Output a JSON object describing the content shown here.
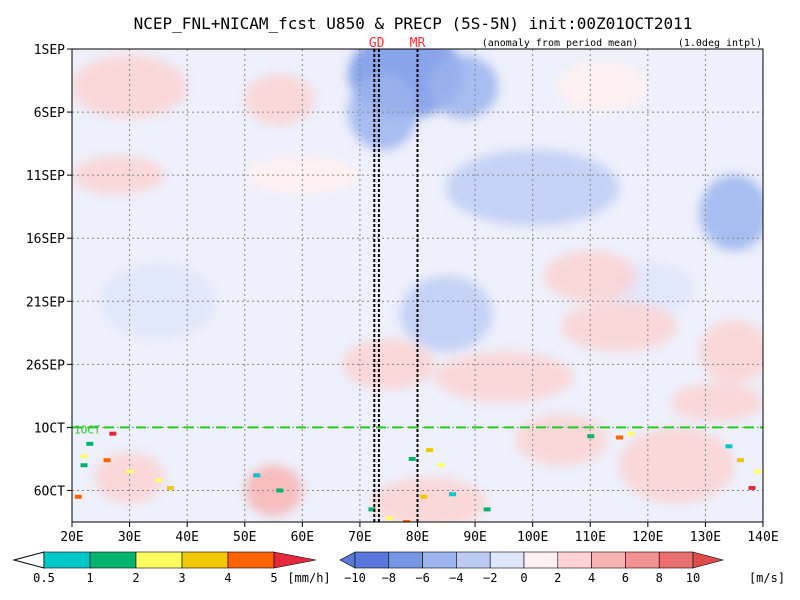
{
  "chart_data": {
    "type": "heatmap",
    "title": "NCEP_FNL+NICAM_fcst U850 & PRECP (5S-5N) init:00Z01OCT2011",
    "subtitle_left": "(anomaly from period mean)",
    "subtitle_right": "(1.0deg intpl)",
    "x_axis": {
      "ticks": [
        "20E",
        "30E",
        "40E",
        "50E",
        "60E",
        "70E",
        "80E",
        "90E",
        "100E",
        "110E",
        "120E",
        "130E",
        "140E"
      ],
      "range": [
        20,
        140
      ],
      "unit": "deg E"
    },
    "y_axis": {
      "ticks": [
        "1SEP",
        "6SEP",
        "11SEP",
        "16SEP",
        "21SEP",
        "26SEP",
        "1OCT",
        "6OCT"
      ],
      "range_days": [
        0,
        37.5
      ],
      "reversed": true
    },
    "init_line": {
      "label": "1OCT",
      "day": 30,
      "color": "#22cc22"
    },
    "markers": [
      {
        "label": "GD",
        "lons": [
          72.5,
          73.3
        ],
        "color": "#ff3333"
      },
      {
        "label": "MR",
        "lons": [
          80.0
        ],
        "color": "#ff3333"
      }
    ],
    "u850_anomaly_patches": [
      {
        "lon": 78,
        "day": 2,
        "rx": 10,
        "ry": 3.5,
        "value": -7
      },
      {
        "lon": 74,
        "day": 5,
        "rx": 6,
        "ry": 3,
        "value": -6
      },
      {
        "lon": 88,
        "day": 3,
        "rx": 6,
        "ry": 2.5,
        "value": -5
      },
      {
        "lon": 135,
        "day": 13,
        "rx": 6,
        "ry": 3,
        "value": -6
      },
      {
        "lon": 100,
        "day": 11,
        "rx": 15,
        "ry": 3,
        "value": -3
      },
      {
        "lon": 85,
        "day": 21,
        "rx": 8,
        "ry": 3,
        "value": -3
      },
      {
        "lon": 35,
        "day": 20,
        "rx": 10,
        "ry": 3,
        "value": -2
      },
      {
        "lon": 120,
        "day": 19,
        "rx": 8,
        "ry": 2,
        "value": -2
      },
      {
        "lon": 30,
        "day": 3,
        "rx": 10,
        "ry": 2.5,
        "value": 2
      },
      {
        "lon": 56,
        "day": 4,
        "rx": 6,
        "ry": 2,
        "value": 2
      },
      {
        "lon": 112,
        "day": 3,
        "rx": 8,
        "ry": 2,
        "value": 1
      },
      {
        "lon": 28,
        "day": 10,
        "rx": 8,
        "ry": 1.5,
        "value": 2
      },
      {
        "lon": 60,
        "day": 10,
        "rx": 10,
        "ry": 1.5,
        "value": 1
      },
      {
        "lon": 110,
        "day": 18,
        "rx": 8,
        "ry": 2,
        "value": 2
      },
      {
        "lon": 135,
        "day": 24,
        "rx": 6,
        "ry": 2.5,
        "value": 3
      },
      {
        "lon": 75,
        "day": 25,
        "rx": 8,
        "ry": 2,
        "value": 3
      },
      {
        "lon": 95,
        "day": 26,
        "rx": 12,
        "ry": 2,
        "value": 2
      },
      {
        "lon": 132,
        "day": 28,
        "rx": 8,
        "ry": 1.5,
        "value": 3
      },
      {
        "lon": 125,
        "day": 33,
        "rx": 10,
        "ry": 3,
        "value": 3
      },
      {
        "lon": 55,
        "day": 35,
        "rx": 5,
        "ry": 2,
        "value": 5
      },
      {
        "lon": 82,
        "day": 36,
        "rx": 10,
        "ry": 2,
        "value": 3
      },
      {
        "lon": 105,
        "day": 31,
        "rx": 8,
        "ry": 2,
        "value": 2
      },
      {
        "lon": 30,
        "day": 34,
        "rx": 6,
        "ry": 2,
        "value": 2
      },
      {
        "lon": 115,
        "day": 22,
        "rx": 10,
        "ry": 2,
        "value": 2
      }
    ],
    "precip_cells": [
      {
        "lon": 27,
        "day": 30.5,
        "value": 5
      },
      {
        "lon": 23,
        "day": 31.3,
        "value": 1.5
      },
      {
        "lon": 22,
        "day": 32.3,
        "value": 2
      },
      {
        "lon": 26,
        "day": 32.6,
        "value": 4
      },
      {
        "lon": 22,
        "day": 33,
        "value": 1
      },
      {
        "lon": 30,
        "day": 33.5,
        "value": 2.5
      },
      {
        "lon": 35,
        "day": 34.2,
        "value": 2
      },
      {
        "lon": 37,
        "day": 34.8,
        "value": 3
      },
      {
        "lon": 21,
        "day": 35.5,
        "value": 4
      },
      {
        "lon": 52,
        "day": 33.8,
        "value": 0.7
      },
      {
        "lon": 56,
        "day": 35,
        "value": 1.2
      },
      {
        "lon": 82,
        "day": 31.8,
        "value": 3
      },
      {
        "lon": 79,
        "day": 32.5,
        "value": 1.3
      },
      {
        "lon": 84,
        "day": 33,
        "value": 2.5
      },
      {
        "lon": 81,
        "day": 35.5,
        "value": 3
      },
      {
        "lon": 72,
        "day": 36.5,
        "value": 1
      },
      {
        "lon": 75,
        "day": 37.2,
        "value": 2
      },
      {
        "lon": 78,
        "day": 37.5,
        "value": 4
      },
      {
        "lon": 86,
        "day": 35.3,
        "value": 0.6
      },
      {
        "lon": 92,
        "day": 36.5,
        "value": 1.2
      },
      {
        "lon": 115,
        "day": 30.8,
        "value": 4
      },
      {
        "lon": 117,
        "day": 30.5,
        "value": 2
      },
      {
        "lon": 134,
        "day": 31.5,
        "value": 0.7
      },
      {
        "lon": 136,
        "day": 32.6,
        "value": 3
      },
      {
        "lon": 139,
        "day": 33.5,
        "value": 2
      },
      {
        "lon": 138,
        "day": 34.8,
        "value": 5
      },
      {
        "lon": 110,
        "day": 30.7,
        "value": 1.3
      }
    ],
    "precip_colorbar": {
      "unit": "[mm/h]",
      "labels": [
        "0.5",
        "1",
        "2",
        "3",
        "4",
        "5"
      ],
      "colors": [
        "#00c8c8",
        "#00b46e",
        "#ffff64",
        "#f0c800",
        "#ff6400",
        "#e6283c"
      ]
    },
    "u850_colorbar": {
      "unit": "[m/s]",
      "labels": [
        "−10",
        "−8",
        "−6",
        "−4",
        "−2",
        "0",
        "2",
        "4",
        "6",
        "8",
        "10"
      ],
      "colors": [
        "#5a78dc",
        "#7896e6",
        "#9bb4ee",
        "#bdccf4",
        "#dfe6fa",
        "#fff1f1",
        "#fcd4d4",
        "#f8b4b4",
        "#f29292",
        "#ea7070",
        "#e04c4c"
      ]
    }
  }
}
